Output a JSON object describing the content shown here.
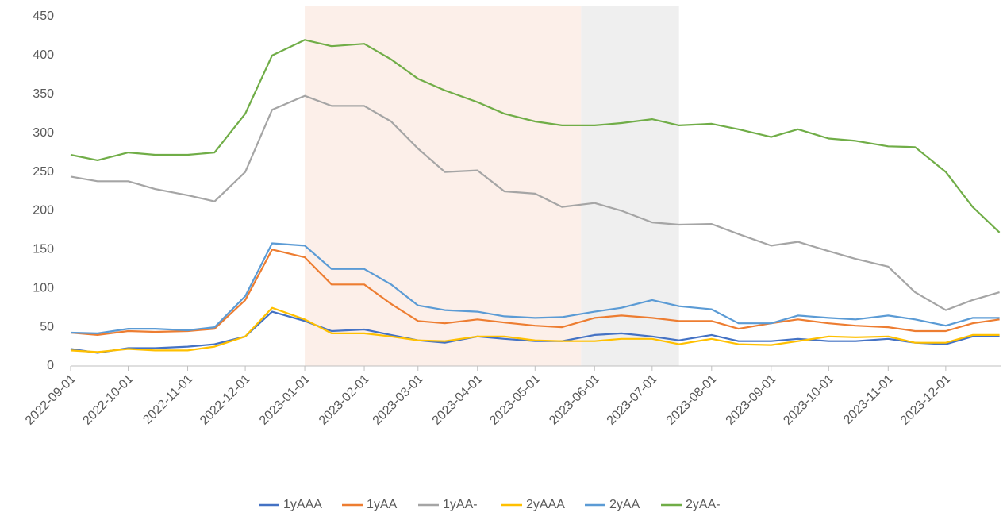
{
  "chart_data": {
    "type": "line",
    "x": [
      "2022-09-01",
      "2022-09-15",
      "2022-10-01",
      "2022-10-15",
      "2022-11-01",
      "2022-11-15",
      "2022-12-01",
      "2022-12-15",
      "2023-01-01",
      "2023-01-15",
      "2023-02-01",
      "2023-02-15",
      "2023-03-01",
      "2023-03-15",
      "2023-04-01",
      "2023-04-15",
      "2023-05-01",
      "2023-05-15",
      "2023-06-01",
      "2023-06-15",
      "2023-07-01",
      "2023-07-15",
      "2023-08-01",
      "2023-08-15",
      "2023-09-01",
      "2023-09-15",
      "2023-10-01",
      "2023-10-15",
      "2023-11-01",
      "2023-11-15",
      "2023-12-01",
      "2023-12-15",
      "2023-12-29"
    ],
    "series": [
      {
        "name": "1yAAA",
        "color": "#4472c4",
        "values": [
          22,
          17,
          23,
          23,
          25,
          28,
          38,
          70,
          58,
          45,
          47,
          40,
          33,
          30,
          38,
          35,
          32,
          32,
          40,
          42,
          38,
          33,
          40,
          32,
          32,
          35,
          32,
          32,
          35,
          30,
          28,
          38,
          38
        ]
      },
      {
        "name": "1yAA",
        "color": "#ed7d31",
        "values": [
          43,
          40,
          45,
          44,
          45,
          48,
          85,
          150,
          140,
          105,
          105,
          80,
          58,
          55,
          60,
          56,
          52,
          50,
          62,
          65,
          62,
          58,
          58,
          48,
          55,
          60,
          55,
          52,
          50,
          45,
          45,
          55,
          60
        ]
      },
      {
        "name": "1yAA-",
        "color": "#a5a5a5",
        "values": [
          244,
          238,
          238,
          228,
          220,
          212,
          250,
          330,
          348,
          335,
          335,
          315,
          280,
          250,
          252,
          225,
          222,
          205,
          210,
          200,
          185,
          182,
          183,
          170,
          155,
          160,
          148,
          138,
          128,
          95,
          72,
          85,
          95
        ]
      },
      {
        "name": "2yAAA",
        "color": "#ffc000",
        "values": [
          20,
          18,
          22,
          20,
          20,
          25,
          38,
          75,
          60,
          42,
          42,
          38,
          33,
          32,
          38,
          38,
          33,
          32,
          32,
          35,
          35,
          28,
          35,
          28,
          27,
          32,
          38,
          37,
          38,
          30,
          30,
          40,
          40
        ]
      },
      {
        "name": "2yAA",
        "color": "#5b9bd5",
        "values": [
          43,
          42,
          48,
          48,
          46,
          50,
          90,
          158,
          155,
          125,
          125,
          105,
          78,
          72,
          70,
          64,
          62,
          63,
          70,
          75,
          85,
          77,
          73,
          55,
          55,
          65,
          62,
          60,
          65,
          60,
          52,
          62,
          62
        ]
      },
      {
        "name": "2yAA-",
        "color": "#70ad47",
        "values": [
          272,
          265,
          275,
          272,
          272,
          275,
          325,
          400,
          420,
          412,
          415,
          395,
          370,
          355,
          340,
          325,
          315,
          310,
          310,
          313,
          318,
          310,
          312,
          305,
          295,
          305,
          293,
          290,
          283,
          282,
          250,
          205,
          172
        ]
      }
    ],
    "xlim": [
      "2022-09-01",
      "2023-12-30"
    ],
    "xticks": [
      "2022-09-01",
      "2022-10-01",
      "2022-11-01",
      "2022-12-01",
      "2023-01-01",
      "2023-02-01",
      "2023-03-01",
      "2023-04-01",
      "2023-05-01",
      "2023-06-01",
      "2023-07-01",
      "2023-08-01",
      "2023-09-01",
      "2023-10-01",
      "2023-11-01",
      "2023-12-01"
    ],
    "ylim": [
      0,
      450
    ],
    "yticks": [
      0,
      50,
      100,
      150,
      200,
      250,
      300,
      350,
      400,
      450
    ],
    "shaded_regions": [
      {
        "start": "2023-01-01",
        "end": "2023-05-25",
        "color": "#fcefe9"
      },
      {
        "start": "2023-05-25",
        "end": "2023-07-15",
        "color": "#efefef"
      }
    ],
    "grid": false,
    "legend": "bottom"
  }
}
